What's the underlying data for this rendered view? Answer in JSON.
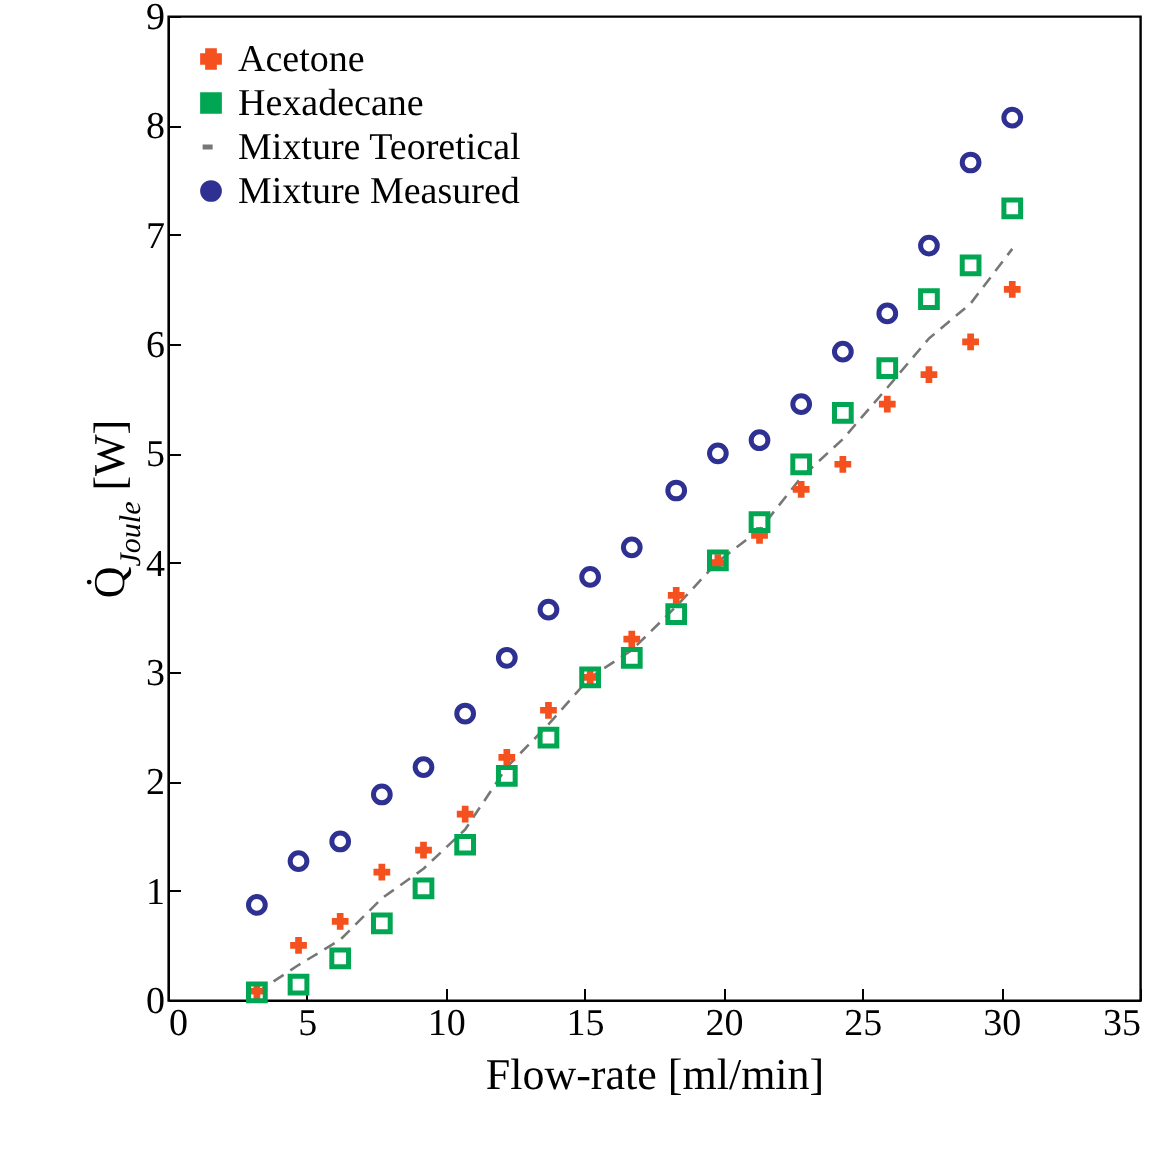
{
  "chart_data": {
    "type": "scatter",
    "xlabel": "Flow-rate [ml/min]",
    "ylabel": "Q̇$_{Joule}$ [W]",
    "x": [
      3.2,
      4.7,
      6.2,
      7.7,
      9.2,
      10.7,
      12.2,
      13.7,
      15.2,
      16.7,
      18.3,
      19.8,
      21.3,
      22.8,
      24.3,
      25.9,
      27.4,
      28.9,
      30.4
    ],
    "series": [
      {
        "name": "Acetone",
        "marker": "cross",
        "color": "#f4511e",
        "values": [
          0.08,
          0.5,
          0.72,
          1.17,
          1.37,
          1.7,
          2.22,
          2.65,
          2.95,
          3.3,
          3.7,
          4.0,
          4.25,
          4.67,
          4.9,
          5.45,
          5.72,
          6.02,
          6.5
        ]
      },
      {
        "name": "Hexadecane",
        "marker": "square",
        "color": "#00a651",
        "values": [
          0.07,
          0.14,
          0.38,
          0.7,
          1.02,
          1.42,
          2.05,
          2.4,
          2.95,
          3.13,
          3.53,
          4.02,
          4.37,
          4.9,
          5.37,
          5.78,
          6.41,
          6.72,
          7.24
        ]
      },
      {
        "name": "Mixture Teoretical",
        "type": "line",
        "line_style": "dashed",
        "color": "#777777",
        "values": [
          0.07,
          0.32,
          0.55,
          0.93,
          1.2,
          1.56,
          2.13,
          2.52,
          2.95,
          3.2,
          3.6,
          4.01,
          4.3,
          4.78,
          5.13,
          5.6,
          6.05,
          6.37,
          6.87
        ]
      },
      {
        "name": "Mixture Measured",
        "marker": "circle",
        "color": "#2e3192",
        "values": [
          0.87,
          1.27,
          1.45,
          1.88,
          2.13,
          2.62,
          3.13,
          3.57,
          3.87,
          4.14,
          4.66,
          5.0,
          5.12,
          5.45,
          5.93,
          6.28,
          6.9,
          7.66,
          8.07
        ]
      }
    ],
    "xlim": [
      0,
      35
    ],
    "xticks": [
      0,
      5,
      10,
      15,
      20,
      25,
      30,
      35
    ],
    "ylim": [
      0,
      9
    ],
    "yticks": [
      0,
      1,
      2,
      3,
      4,
      5,
      6,
      7,
      8,
      9
    ],
    "grid": false,
    "legend": "top left"
  }
}
